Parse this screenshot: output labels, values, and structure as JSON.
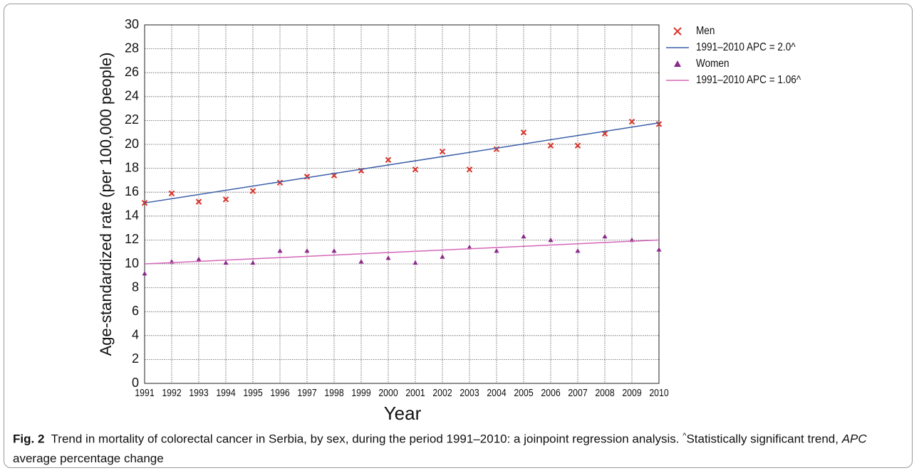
{
  "chart_data": {
    "type": "scatter",
    "y_label": "Age-standardized rate (per 100,000 people)",
    "x_label": "Year",
    "x": [
      1991,
      1992,
      1993,
      1994,
      1995,
      1996,
      1997,
      1998,
      1999,
      2000,
      2001,
      2002,
      2003,
      2004,
      2005,
      2006,
      2007,
      2008,
      2009,
      2010
    ],
    "series": [
      {
        "name": "Men",
        "type": "scatter",
        "marker": "x",
        "color": "#d9342b",
        "values": [
          15.1,
          15.9,
          15.2,
          15.4,
          16.1,
          16.8,
          17.3,
          17.4,
          17.8,
          18.7,
          17.9,
          19.4,
          17.9,
          19.6,
          21.0,
          19.9,
          19.9,
          20.9,
          21.9,
          21.7
        ]
      },
      {
        "name": "1991–2010 APC = 2.0^",
        "type": "line",
        "color": "#3b5ea8",
        "x": [
          1991,
          2010
        ],
        "values": [
          15.1,
          21.8
        ]
      },
      {
        "name": "Women",
        "type": "scatter",
        "marker": "triangle",
        "color": "#8a2a8a",
        "values": [
          9.2,
          10.2,
          10.4,
          10.1,
          10.1,
          11.1,
          11.1,
          11.1,
          10.2,
          10.5,
          10.1,
          10.6,
          11.4,
          11.1,
          12.3,
          12.0,
          11.1,
          12.3,
          12.0,
          11.2
        ]
      },
      {
        "name": "1991–2010 APC = 1.06^",
        "type": "line",
        "color": "#d466b8",
        "x": [
          1991,
          2010
        ],
        "values": [
          10.0,
          12.0
        ]
      }
    ],
    "xlim": [
      1991,
      2010
    ],
    "xticks": [
      1991,
      1992,
      1993,
      1994,
      1995,
      1996,
      1997,
      1998,
      1999,
      2000,
      2001,
      2002,
      2003,
      2004,
      2005,
      2006,
      2007,
      2008,
      2009,
      2010
    ],
    "ylim": [
      0,
      30
    ],
    "yticks": [
      0,
      2,
      4,
      6,
      8,
      10,
      12,
      14,
      16,
      18,
      20,
      22,
      24,
      26,
      28,
      30
    ],
    "grid": true,
    "legend": "right"
  },
  "caption": {
    "label": "Fig. 2",
    "text": "Trend in mortality of colorectal cancer in Serbia, by sex, during the period 1991–2010: a joinpoint regression analysis.",
    "note_mark": "^",
    "note": "Statistically significant trend,",
    "abbr": "APC",
    "abbr_def": "average percentage change"
  }
}
